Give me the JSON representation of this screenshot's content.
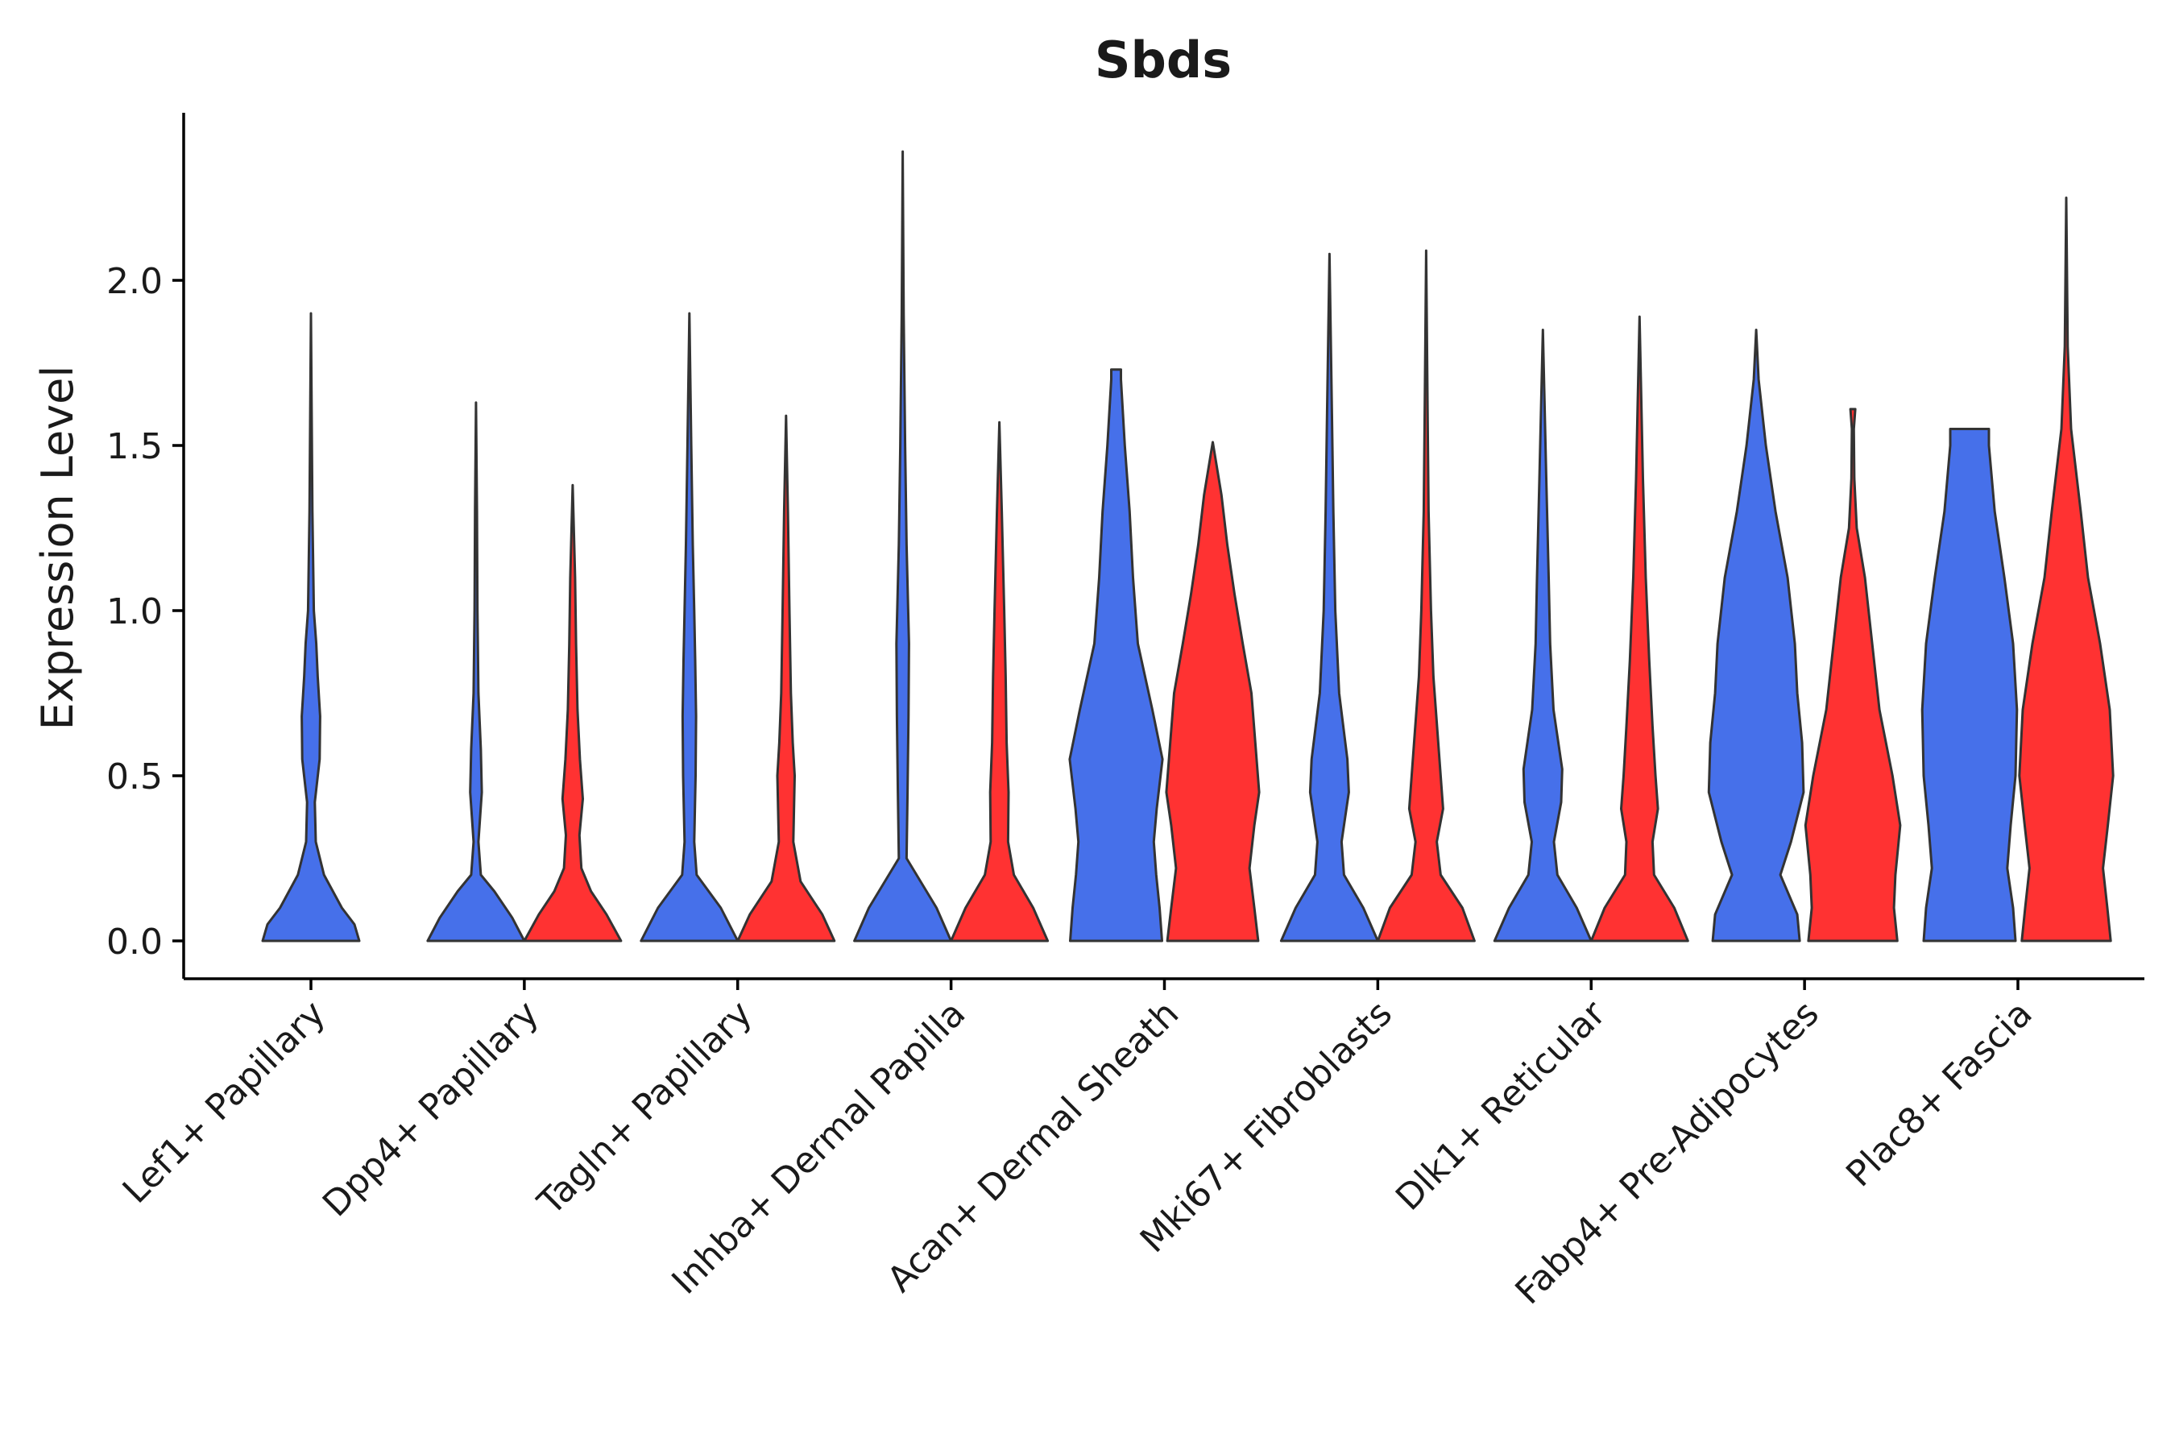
{
  "chart_data": {
    "type": "violin",
    "title": "Sbds",
    "xlabel": "",
    "ylabel": "Expression Level",
    "ylim": [
      -0.12,
      2.5
    ],
    "yticks": [
      0.0,
      0.5,
      1.0,
      1.5,
      2.0
    ],
    "ytick_labels": [
      "0.0",
      "0.5",
      "1.0",
      "1.5",
      "2.0"
    ],
    "grid": false,
    "legend": "none",
    "series_colors": {
      "group_a": "#4670EA",
      "group_b": "#FF3232"
    },
    "outline_color": "#333333",
    "categories": [
      {
        "label": "Lef1+ Papillary",
        "violins": [
          {
            "group": "group_a",
            "max": 1.9,
            "profile": [
              [
                0,
                1.0
              ],
              [
                0.05,
                0.9
              ],
              [
                0.1,
                0.64
              ],
              [
                0.2,
                0.27
              ],
              [
                0.3,
                0.1
              ],
              [
                0.42,
                0.08
              ],
              [
                0.55,
                0.18
              ],
              [
                0.68,
                0.19
              ],
              [
                0.8,
                0.14
              ],
              [
                0.9,
                0.11
              ],
              [
                1.0,
                0.06
              ],
              [
                1.3,
                0.03
              ],
              [
                1.6,
                0.015
              ],
              [
                1.9,
                0.0
              ]
            ]
          }
        ]
      },
      {
        "label": "Dpp4+ Papillary",
        "violins": [
          {
            "group": "group_a",
            "max": 1.63,
            "profile": [
              [
                0,
                1.0
              ],
              [
                0.07,
                0.75
              ],
              [
                0.15,
                0.38
              ],
              [
                0.2,
                0.1
              ],
              [
                0.3,
                0.05
              ],
              [
                0.45,
                0.12
              ],
              [
                0.58,
                0.1
              ],
              [
                0.75,
                0.05
              ],
              [
                1.0,
                0.03
              ],
              [
                1.3,
                0.02
              ],
              [
                1.63,
                0.0
              ]
            ]
          },
          {
            "group": "group_b",
            "max": 1.38,
            "profile": [
              [
                0,
                1.0
              ],
              [
                0.08,
                0.7
              ],
              [
                0.15,
                0.38
              ],
              [
                0.22,
                0.18
              ],
              [
                0.32,
                0.14
              ],
              [
                0.43,
                0.21
              ],
              [
                0.55,
                0.15
              ],
              [
                0.7,
                0.1
              ],
              [
                0.9,
                0.07
              ],
              [
                1.1,
                0.05
              ],
              [
                1.38,
                0.0
              ]
            ]
          }
        ]
      },
      {
        "label": "Tagln+ Papillary",
        "violins": [
          {
            "group": "group_a",
            "max": 1.9,
            "profile": [
              [
                0,
                1.0
              ],
              [
                0.1,
                0.65
              ],
              [
                0.2,
                0.15
              ],
              [
                0.3,
                0.1
              ],
              [
                0.5,
                0.13
              ],
              [
                0.68,
                0.14
              ],
              [
                0.85,
                0.12
              ],
              [
                1.0,
                0.1
              ],
              [
                1.2,
                0.07
              ],
              [
                1.5,
                0.04
              ],
              [
                1.9,
                0.0
              ]
            ]
          },
          {
            "group": "group_b",
            "max": 1.59,
            "profile": [
              [
                0,
                1.0
              ],
              [
                0.08,
                0.75
              ],
              [
                0.18,
                0.3
              ],
              [
                0.3,
                0.15
              ],
              [
                0.5,
                0.18
              ],
              [
                0.6,
                0.14
              ],
              [
                0.75,
                0.1
              ],
              [
                1.0,
                0.07
              ],
              [
                1.3,
                0.04
              ],
              [
                1.59,
                0.0
              ]
            ]
          }
        ]
      },
      {
        "label": "Inhba+ Dermal Papilla",
        "violins": [
          {
            "group": "group_a",
            "max": 2.39,
            "profile": [
              [
                0,
                1.0
              ],
              [
                0.1,
                0.7
              ],
              [
                0.25,
                0.08
              ],
              [
                0.45,
                0.1
              ],
              [
                0.68,
                0.12
              ],
              [
                0.9,
                0.13
              ],
              [
                1.2,
                0.08
              ],
              [
                1.5,
                0.05
              ],
              [
                1.9,
                0.02
              ],
              [
                2.39,
                0.0
              ]
            ]
          },
          {
            "group": "group_b",
            "max": 1.57,
            "profile": [
              [
                0,
                1.0
              ],
              [
                0.1,
                0.7
              ],
              [
                0.2,
                0.3
              ],
              [
                0.3,
                0.18
              ],
              [
                0.45,
                0.19
              ],
              [
                0.6,
                0.15
              ],
              [
                0.8,
                0.13
              ],
              [
                1.0,
                0.1
              ],
              [
                1.3,
                0.05
              ],
              [
                1.57,
                0.0
              ]
            ]
          }
        ]
      },
      {
        "label": "Acan+ Dermal Sheath",
        "violins": [
          {
            "group": "group_a",
            "max": 1.73,
            "profile": [
              [
                0,
                0.95
              ],
              [
                0.1,
                0.9
              ],
              [
                0.2,
                0.83
              ],
              [
                0.3,
                0.78
              ],
              [
                0.4,
                0.84
              ],
              [
                0.55,
                0.96
              ],
              [
                0.7,
                0.75
              ],
              [
                0.9,
                0.45
              ],
              [
                1.1,
                0.35
              ],
              [
                1.3,
                0.28
              ],
              [
                1.5,
                0.18
              ],
              [
                1.7,
                0.1
              ],
              [
                1.73,
                0.1
              ]
            ]
          },
          {
            "group": "group_b",
            "max": 1.51,
            "profile": [
              [
                0,
                0.94
              ],
              [
                0.1,
                0.86
              ],
              [
                0.22,
                0.76
              ],
              [
                0.35,
                0.86
              ],
              [
                0.45,
                0.96
              ],
              [
                0.6,
                0.88
              ],
              [
                0.75,
                0.8
              ],
              [
                0.9,
                0.62
              ],
              [
                1.05,
                0.45
              ],
              [
                1.2,
                0.3
              ],
              [
                1.35,
                0.18
              ],
              [
                1.51,
                0.0
              ]
            ]
          }
        ]
      },
      {
        "label": "Mki67+ Fibroblasts",
        "violins": [
          {
            "group": "group_a",
            "max": 2.08,
            "profile": [
              [
                0,
                1.0
              ],
              [
                0.1,
                0.7
              ],
              [
                0.2,
                0.3
              ],
              [
                0.3,
                0.25
              ],
              [
                0.45,
                0.4
              ],
              [
                0.55,
                0.37
              ],
              [
                0.75,
                0.2
              ],
              [
                1.0,
                0.12
              ],
              [
                1.3,
                0.08
              ],
              [
                1.6,
                0.05
              ],
              [
                2.08,
                0.0
              ]
            ]
          },
          {
            "group": "group_b",
            "max": 2.09,
            "profile": [
              [
                0,
                1.0
              ],
              [
                0.1,
                0.75
              ],
              [
                0.2,
                0.3
              ],
              [
                0.3,
                0.22
              ],
              [
                0.4,
                0.35
              ],
              [
                0.6,
                0.25
              ],
              [
                0.8,
                0.15
              ],
              [
                1.0,
                0.1
              ],
              [
                1.3,
                0.05
              ],
              [
                1.6,
                0.03
              ],
              [
                2.09,
                0.0
              ]
            ]
          }
        ]
      },
      {
        "label": "Dlk1+ Reticular",
        "violins": [
          {
            "group": "group_a",
            "max": 1.85,
            "profile": [
              [
                0,
                1.0
              ],
              [
                0.1,
                0.7
              ],
              [
                0.2,
                0.3
              ],
              [
                0.3,
                0.23
              ],
              [
                0.42,
                0.38
              ],
              [
                0.52,
                0.4
              ],
              [
                0.7,
                0.22
              ],
              [
                0.9,
                0.15
              ],
              [
                1.1,
                0.12
              ],
              [
                1.4,
                0.07
              ],
              [
                1.85,
                0.0
              ]
            ]
          },
          {
            "group": "group_b",
            "max": 1.89,
            "profile": [
              [
                0,
                1.0
              ],
              [
                0.1,
                0.72
              ],
              [
                0.2,
                0.3
              ],
              [
                0.3,
                0.27
              ],
              [
                0.4,
                0.38
              ],
              [
                0.5,
                0.33
              ],
              [
                0.65,
                0.27
              ],
              [
                0.85,
                0.2
              ],
              [
                1.1,
                0.13
              ],
              [
                1.4,
                0.07
              ],
              [
                1.89,
                0.0
              ]
            ]
          }
        ]
      },
      {
        "label": "Fabp4+ Pre-Adipocytes",
        "violins": [
          {
            "group": "group_a",
            "max": 1.85,
            "profile": [
              [
                0,
                0.9
              ],
              [
                0.08,
                0.85
              ],
              [
                0.2,
                0.5
              ],
              [
                0.3,
                0.72
              ],
              [
                0.45,
                0.98
              ],
              [
                0.6,
                0.95
              ],
              [
                0.75,
                0.85
              ],
              [
                0.9,
                0.8
              ],
              [
                1.1,
                0.65
              ],
              [
                1.3,
                0.4
              ],
              [
                1.5,
                0.2
              ],
              [
                1.7,
                0.05
              ],
              [
                1.85,
                0.0
              ]
            ]
          },
          {
            "group": "group_b",
            "max": 1.61,
            "profile": [
              [
                0,
                0.92
              ],
              [
                0.1,
                0.85
              ],
              [
                0.2,
                0.88
              ],
              [
                0.35,
                0.98
              ],
              [
                0.5,
                0.82
              ],
              [
                0.7,
                0.55
              ],
              [
                0.9,
                0.4
              ],
              [
                1.1,
                0.25
              ],
              [
                1.25,
                0.08
              ],
              [
                1.4,
                0.03
              ],
              [
                1.55,
                0.02
              ],
              [
                1.61,
                0.05
              ]
            ]
          }
        ]
      },
      {
        "label": "Plac8+ Fascia",
        "violins": [
          {
            "group": "group_a",
            "max": 1.55,
            "profile": [
              [
                0,
                0.95
              ],
              [
                0.1,
                0.9
              ],
              [
                0.22,
                0.78
              ],
              [
                0.35,
                0.85
              ],
              [
                0.5,
                0.95
              ],
              [
                0.7,
                0.98
              ],
              [
                0.9,
                0.9
              ],
              [
                1.1,
                0.72
              ],
              [
                1.3,
                0.52
              ],
              [
                1.5,
                0.4
              ],
              [
                1.55,
                0.4
              ]
            ]
          },
          {
            "group": "group_b",
            "max": 2.25,
            "profile": [
              [
                0,
                0.92
              ],
              [
                0.1,
                0.85
              ],
              [
                0.22,
                0.76
              ],
              [
                0.35,
                0.86
              ],
              [
                0.5,
                0.97
              ],
              [
                0.7,
                0.9
              ],
              [
                0.9,
                0.7
              ],
              [
                1.1,
                0.45
              ],
              [
                1.3,
                0.3
              ],
              [
                1.55,
                0.1
              ],
              [
                1.8,
                0.03
              ],
              [
                2.25,
                0.0
              ]
            ]
          }
        ]
      }
    ]
  }
}
